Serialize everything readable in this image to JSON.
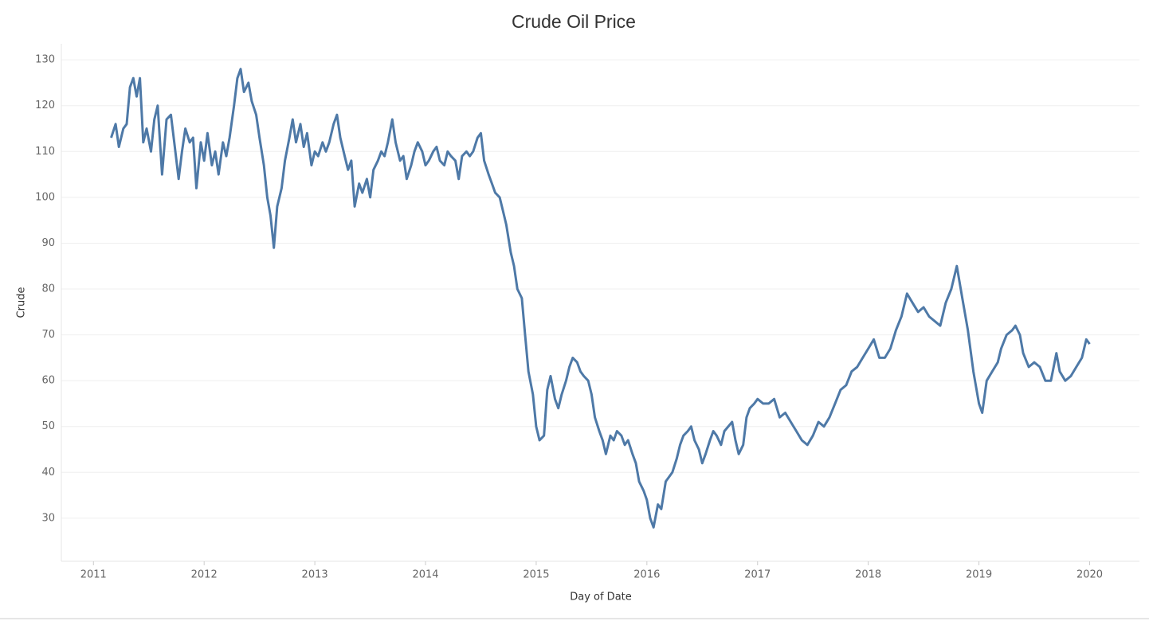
{
  "chart_data": {
    "type": "line",
    "title": "Crude Oil Price",
    "x_label": "Day of Date",
    "y_label": "Crude",
    "x": [
      2011.16,
      2011.2,
      2011.23,
      2011.27,
      2011.3,
      2011.33,
      2011.36,
      2011.39,
      2011.42,
      2011.45,
      2011.48,
      2011.52,
      2011.55,
      2011.58,
      2011.62,
      2011.66,
      2011.7,
      2011.73,
      2011.77,
      2011.8,
      2011.83,
      2011.87,
      2011.9,
      2011.93,
      2011.97,
      2012.0,
      2012.03,
      2012.07,
      2012.1,
      2012.13,
      2012.17,
      2012.2,
      2012.23,
      2012.27,
      2012.3,
      2012.33,
      2012.36,
      2012.4,
      2012.43,
      2012.47,
      2012.5,
      2012.54,
      2012.57,
      2012.6,
      2012.63,
      2012.66,
      2012.7,
      2012.73,
      2012.77,
      2012.8,
      2012.83,
      2012.87,
      2012.9,
      2012.93,
      2012.97,
      2013.0,
      2013.03,
      2013.07,
      2013.1,
      2013.13,
      2013.17,
      2013.2,
      2013.23,
      2013.27,
      2013.3,
      2013.33,
      2013.36,
      2013.4,
      2013.43,
      2013.47,
      2013.5,
      2013.53,
      2013.57,
      2013.6,
      2013.63,
      2013.66,
      2013.7,
      2013.73,
      2013.77,
      2013.8,
      2013.83,
      2013.87,
      2013.9,
      2013.93,
      2013.97,
      2014.0,
      2014.03,
      2014.07,
      2014.1,
      2014.13,
      2014.17,
      2014.2,
      2014.23,
      2014.27,
      2014.3,
      2014.33,
      2014.37,
      2014.4,
      2014.43,
      2014.47,
      2014.5,
      2014.53,
      2014.57,
      2014.6,
      2014.63,
      2014.67,
      2014.7,
      2014.73,
      2014.77,
      2014.8,
      2014.83,
      2014.87,
      2014.9,
      2014.93,
      2014.97,
      2015.0,
      2015.03,
      2015.07,
      2015.1,
      2015.13,
      2015.17,
      2015.2,
      2015.23,
      2015.27,
      2015.3,
      2015.33,
      2015.37,
      2015.4,
      2015.43,
      2015.47,
      2015.5,
      2015.53,
      2015.57,
      2015.6,
      2015.63,
      2015.67,
      2015.7,
      2015.73,
      2015.77,
      2015.8,
      2015.83,
      2015.87,
      2015.9,
      2015.93,
      2015.97,
      2016.0,
      2016.03,
      2016.06,
      2016.1,
      2016.13,
      2016.17,
      2016.2,
      2016.23,
      2016.27,
      2016.3,
      2016.33,
      2016.37,
      2016.4,
      2016.43,
      2016.47,
      2016.5,
      2016.53,
      2016.57,
      2016.6,
      2016.63,
      2016.67,
      2016.7,
      2016.77,
      2016.8,
      2016.83,
      2016.87,
      2016.9,
      2016.93,
      2016.97,
      2017.0,
      2017.05,
      2017.1,
      2017.15,
      2017.2,
      2017.25,
      2017.3,
      2017.35,
      2017.4,
      2017.45,
      2017.5,
      2017.55,
      2017.6,
      2017.65,
      2017.7,
      2017.75,
      2017.8,
      2017.85,
      2017.9,
      2017.95,
      2018.0,
      2018.05,
      2018.1,
      2018.15,
      2018.2,
      2018.25,
      2018.3,
      2018.35,
      2018.4,
      2018.45,
      2018.5,
      2018.55,
      2018.6,
      2018.65,
      2018.7,
      2018.75,
      2018.8,
      2018.85,
      2018.9,
      2018.95,
      2019.0,
      2019.03,
      2019.07,
      2019.12,
      2019.17,
      2019.2,
      2019.25,
      2019.3,
      2019.33,
      2019.37,
      2019.4,
      2019.45,
      2019.5,
      2019.55,
      2019.6,
      2019.65,
      2019.7,
      2019.73,
      2019.78,
      2019.83,
      2019.88,
      2019.93,
      2019.97,
      2020.0
    ],
    "series": [
      {
        "name": "Crude",
        "color": "#4e79a7",
        "values": [
          113,
          116,
          111,
          115,
          116,
          124,
          126,
          122,
          126,
          112,
          115,
          110,
          117,
          120,
          105,
          117,
          118,
          112,
          104,
          110,
          115,
          112,
          113,
          102,
          112,
          108,
          114,
          107,
          110,
          105,
          112,
          109,
          113,
          120,
          126,
          128,
          123,
          125,
          121,
          118,
          113,
          107,
          100,
          96,
          89,
          98,
          102,
          108,
          113,
          117,
          112,
          116,
          111,
          114,
          107,
          110,
          109,
          112,
          110,
          112,
          116,
          118,
          113,
          109,
          106,
          108,
          98,
          103,
          101,
          104,
          100,
          106,
          108,
          110,
          109,
          112,
          117,
          112,
          108,
          109,
          104,
          107,
          110,
          112,
          110,
          107,
          108,
          110,
          111,
          108,
          107,
          110,
          109,
          108,
          104,
          109,
          110,
          109,
          110,
          113,
          114,
          108,
          105,
          103,
          101,
          100,
          97,
          94,
          88,
          85,
          80,
          78,
          70,
          62,
          57,
          50,
          47,
          48,
          58,
          61,
          56,
          54,
          57,
          60,
          63,
          65,
          64,
          62,
          61,
          60,
          57,
          52,
          49,
          47,
          44,
          48,
          47,
          49,
          48,
          46,
          47,
          44,
          42,
          38,
          36,
          34,
          30,
          28,
          33,
          32,
          38,
          39,
          40,
          43,
          46,
          48,
          49,
          50,
          47,
          45,
          42,
          44,
          47,
          49,
          48,
          46,
          49,
          51,
          47,
          44,
          46,
          52,
          54,
          55,
          56,
          55,
          55,
          56,
          52,
          53,
          51,
          49,
          47,
          46,
          48,
          51,
          50,
          52,
          55,
          58,
          59,
          62,
          63,
          65,
          67,
          69,
          65,
          65,
          67,
          71,
          74,
          79,
          77,
          75,
          76,
          74,
          73,
          72,
          77,
          80,
          85,
          78,
          71,
          62,
          55,
          53,
          60,
          62,
          64,
          67,
          70,
          71,
          72,
          70,
          66,
          63,
          64,
          63,
          60,
          60,
          66,
          62,
          60,
          61,
          63,
          65,
          69,
          68
        ]
      }
    ],
    "xlim": [
      2010.71,
      2020.45
    ],
    "xticks": [
      2011,
      2012,
      2013,
      2014,
      2015,
      2016,
      2017,
      2018,
      2019,
      2020
    ],
    "ylim": [
      20.6,
      133.5
    ],
    "yticks": [
      30,
      40,
      50,
      60,
      70,
      80,
      90,
      100,
      110,
      120,
      130
    ],
    "grid": true
  }
}
